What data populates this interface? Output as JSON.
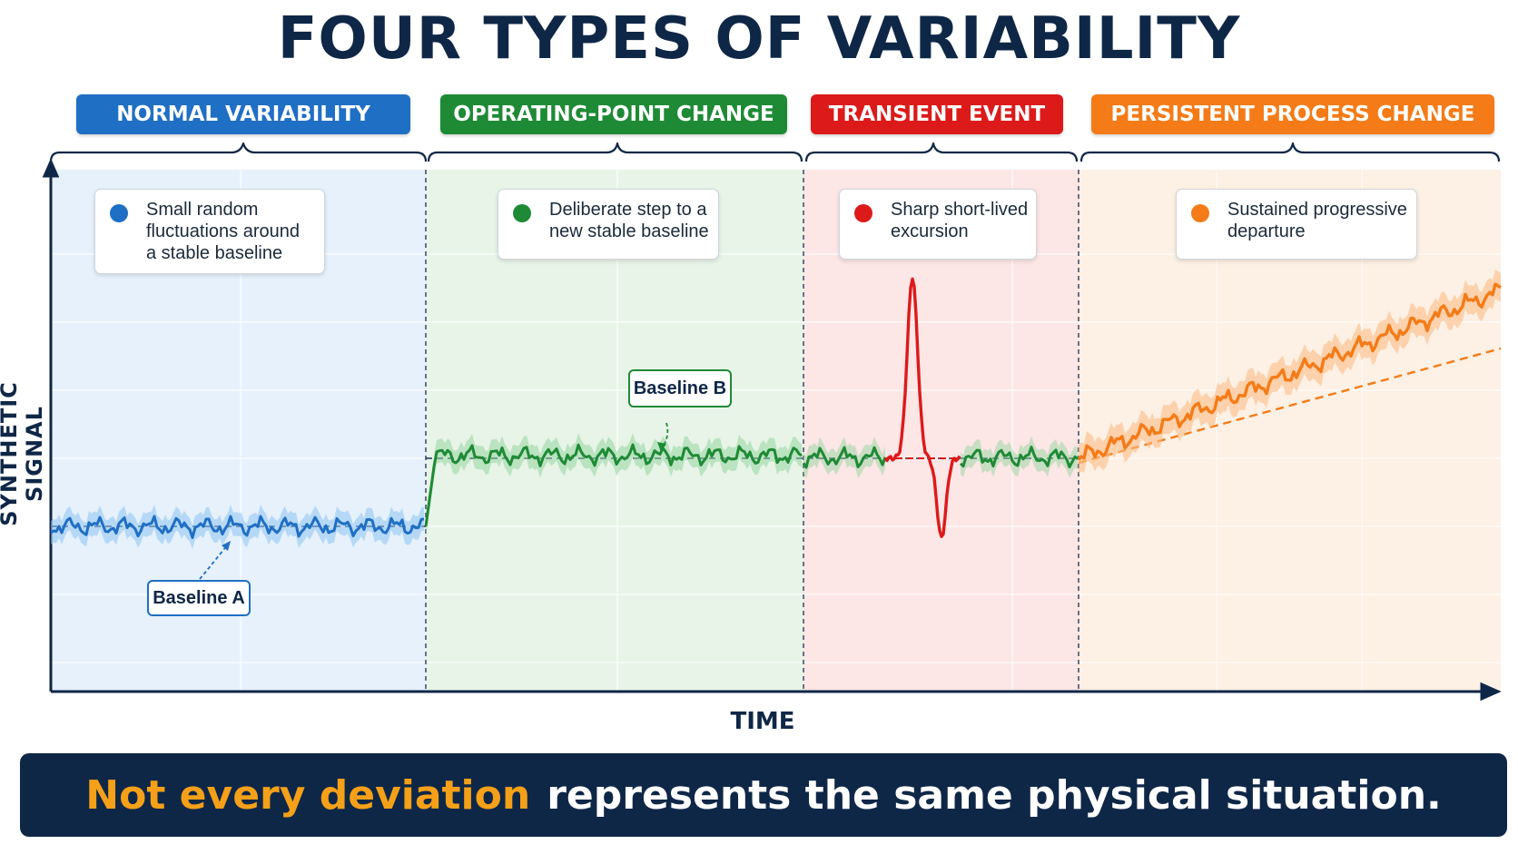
{
  "title": "FOUR TYPES OF VARIABILITY",
  "colors": {
    "navy": "#0f2747",
    "normal": "#1f6fc4",
    "operating": "#1e8a35",
    "transient": "#dc1a1a",
    "persistent": "#f47b17",
    "highlight": "#f5a019"
  },
  "segments": [
    {
      "label": "NORMAL VARIABILITY",
      "callout_lines": [
        "Small random",
        "fluctuations around",
        "a stable baseline"
      ]
    },
    {
      "label": "OPERATING-POINT CHANGE",
      "callout_lines": [
        "Deliberate step to a",
        "new stable baseline"
      ]
    },
    {
      "label": "TRANSIENT EVENT",
      "callout_lines": [
        "Sharp short-lived",
        "excursion"
      ]
    },
    {
      "label": "PERSISTENT PROCESS CHANGE",
      "callout_lines": [
        "Sustained progressive",
        "departure"
      ]
    }
  ],
  "baselines": {
    "a": "Baseline A",
    "b": "Baseline B"
  },
  "axes": {
    "y_label": "SYNTHETIC SIGNAL",
    "x_label": "TIME"
  },
  "banner": {
    "highlight": "Not every deviation",
    "rest": "represents the same physical situation."
  }
}
